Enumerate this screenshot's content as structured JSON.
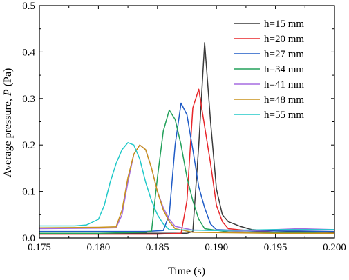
{
  "chart_data": {
    "type": "line",
    "xlabel": "Time (s)",
    "ylabel_prefix": "Average pressure, ",
    "ylabel_symbol": "P",
    "ylabel_suffix": " (Pa)",
    "xlim": [
      0.175,
      0.2
    ],
    "ylim": [
      0,
      0.5
    ],
    "xticks": [
      0.175,
      0.18,
      0.185,
      0.19,
      0.195,
      0.2
    ],
    "xtick_labels": [
      "0.175",
      "0.180",
      "0.185",
      "0.190",
      "0.195",
      "0.200"
    ],
    "yticks": [
      0,
      0.1,
      0.2,
      0.3,
      0.4,
      0.5
    ],
    "ytick_labels": [
      "0.0",
      "0.1",
      "0.2",
      "0.3",
      "0.4",
      "0.5"
    ],
    "grid": false,
    "legend_position": "top-right",
    "series": [
      {
        "name": "h=15 mm",
        "color": "#3a3a3a",
        "points": [
          [
            0.175,
            0.01
          ],
          [
            0.18,
            0.01
          ],
          [
            0.185,
            0.01
          ],
          [
            0.1875,
            0.01
          ],
          [
            0.188,
            0.014
          ],
          [
            0.1885,
            0.2
          ],
          [
            0.189,
            0.42
          ],
          [
            0.1895,
            0.25
          ],
          [
            0.19,
            0.105
          ],
          [
            0.1905,
            0.05
          ],
          [
            0.191,
            0.035
          ],
          [
            0.192,
            0.025
          ],
          [
            0.193,
            0.018
          ],
          [
            0.195,
            0.015
          ],
          [
            0.2,
            0.012
          ]
        ]
      },
      {
        "name": "h=20 mm",
        "color": "#e8262a",
        "points": [
          [
            0.175,
            0.008
          ],
          [
            0.18,
            0.008
          ],
          [
            0.185,
            0.008
          ],
          [
            0.187,
            0.01
          ],
          [
            0.1875,
            0.08
          ],
          [
            0.188,
            0.28
          ],
          [
            0.1885,
            0.32
          ],
          [
            0.189,
            0.24
          ],
          [
            0.1895,
            0.16
          ],
          [
            0.19,
            0.07
          ],
          [
            0.1905,
            0.035
          ],
          [
            0.191,
            0.02
          ],
          [
            0.193,
            0.015
          ],
          [
            0.195,
            0.012
          ],
          [
            0.2,
            0.01
          ]
        ]
      },
      {
        "name": "h=27 mm",
        "color": "#1f5bc6",
        "points": [
          [
            0.175,
            0.014
          ],
          [
            0.18,
            0.014
          ],
          [
            0.184,
            0.014
          ],
          [
            0.1855,
            0.016
          ],
          [
            0.186,
            0.05
          ],
          [
            0.1865,
            0.2
          ],
          [
            0.187,
            0.29
          ],
          [
            0.1875,
            0.265
          ],
          [
            0.188,
            0.19
          ],
          [
            0.1885,
            0.11
          ],
          [
            0.189,
            0.065
          ],
          [
            0.1895,
            0.03
          ],
          [
            0.19,
            0.018
          ],
          [
            0.193,
            0.015
          ],
          [
            0.197,
            0.015
          ],
          [
            0.2,
            0.014
          ]
        ]
      },
      {
        "name": "h=34 mm",
        "color": "#22a05a",
        "points": [
          [
            0.175,
            0.01
          ],
          [
            0.18,
            0.01
          ],
          [
            0.184,
            0.012
          ],
          [
            0.1845,
            0.015
          ],
          [
            0.185,
            0.13
          ],
          [
            0.1855,
            0.23
          ],
          [
            0.186,
            0.275
          ],
          [
            0.1865,
            0.255
          ],
          [
            0.187,
            0.2
          ],
          [
            0.1875,
            0.13
          ],
          [
            0.188,
            0.08
          ],
          [
            0.1885,
            0.04
          ],
          [
            0.189,
            0.02
          ],
          [
            0.191,
            0.013
          ],
          [
            0.195,
            0.012
          ],
          [
            0.2,
            0.01
          ]
        ]
      },
      {
        "name": "h=41 mm",
        "color": "#a56ce0",
        "points": [
          [
            0.175,
            0.02
          ],
          [
            0.18,
            0.021
          ],
          [
            0.1815,
            0.022
          ],
          [
            0.182,
            0.05
          ],
          [
            0.1825,
            0.12
          ],
          [
            0.183,
            0.18
          ],
          [
            0.1835,
            0.2
          ],
          [
            0.184,
            0.19
          ],
          [
            0.1845,
            0.15
          ],
          [
            0.185,
            0.1
          ],
          [
            0.1855,
            0.065
          ],
          [
            0.186,
            0.04
          ],
          [
            0.1865,
            0.025
          ],
          [
            0.188,
            0.017
          ],
          [
            0.192,
            0.015
          ],
          [
            0.197,
            0.02
          ],
          [
            0.2,
            0.018
          ]
        ]
      },
      {
        "name": "h=48 mm",
        "color": "#c8921c",
        "points": [
          [
            0.175,
            0.022
          ],
          [
            0.18,
            0.023
          ],
          [
            0.1815,
            0.024
          ],
          [
            0.182,
            0.06
          ],
          [
            0.1825,
            0.13
          ],
          [
            0.183,
            0.18
          ],
          [
            0.1835,
            0.2
          ],
          [
            0.184,
            0.19
          ],
          [
            0.1845,
            0.15
          ],
          [
            0.185,
            0.1
          ],
          [
            0.1855,
            0.06
          ],
          [
            0.186,
            0.035
          ],
          [
            0.1865,
            0.02
          ],
          [
            0.188,
            0.012
          ],
          [
            0.195,
            0.01
          ],
          [
            0.2,
            0.01
          ]
        ]
      },
      {
        "name": "h=55 mm",
        "color": "#22c9c9",
        "points": [
          [
            0.175,
            0.026
          ],
          [
            0.178,
            0.026
          ],
          [
            0.179,
            0.028
          ],
          [
            0.18,
            0.04
          ],
          [
            0.1805,
            0.07
          ],
          [
            0.181,
            0.12
          ],
          [
            0.1815,
            0.16
          ],
          [
            0.182,
            0.19
          ],
          [
            0.1825,
            0.205
          ],
          [
            0.183,
            0.2
          ],
          [
            0.1835,
            0.17
          ],
          [
            0.184,
            0.12
          ],
          [
            0.1845,
            0.08
          ],
          [
            0.185,
            0.05
          ],
          [
            0.1855,
            0.03
          ],
          [
            0.186,
            0.018
          ],
          [
            0.19,
            0.016
          ],
          [
            0.195,
            0.018
          ],
          [
            0.2,
            0.018
          ]
        ]
      }
    ]
  }
}
